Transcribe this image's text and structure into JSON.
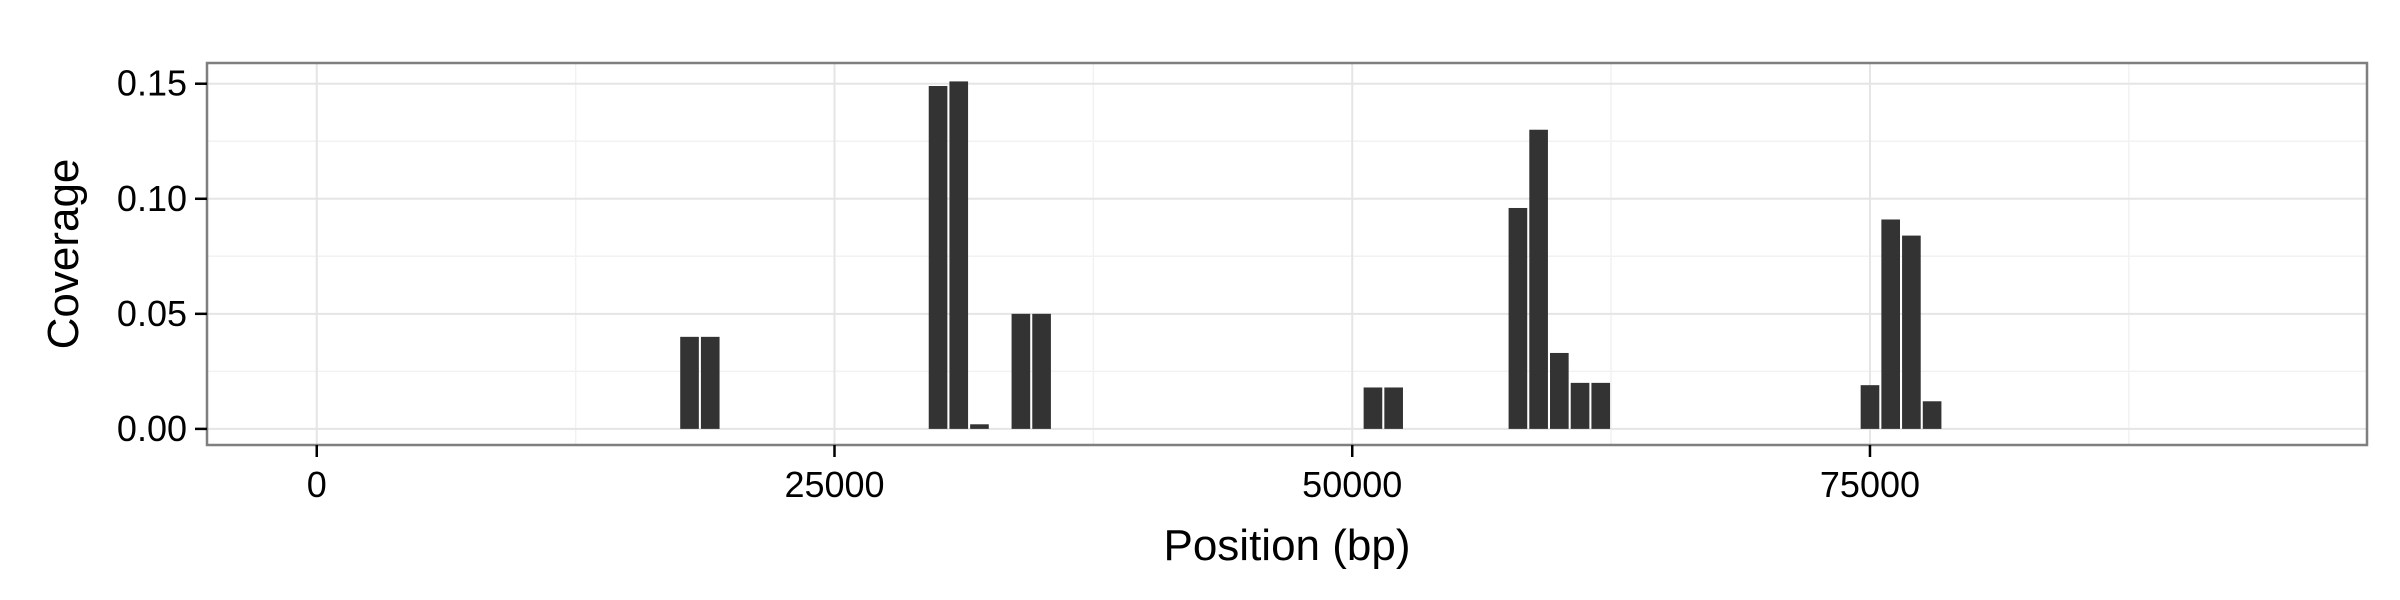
{
  "chart_data": {
    "type": "bar",
    "title": "",
    "xlabel": "Position (bp)",
    "ylabel": "Coverage",
    "xlim": [
      -5300,
      99000
    ],
    "ylim": [
      -0.007,
      0.159
    ],
    "x_ticks": [
      0,
      25000,
      50000,
      75000
    ],
    "x_tick_labels": [
      "0",
      "25000",
      "50000",
      "75000"
    ],
    "y_ticks": [
      0,
      0.05,
      0.1,
      0.15
    ],
    "y_tick_labels": [
      "0.00",
      "0.05",
      "0.10",
      "0.15"
    ],
    "grid": true,
    "bin_width": 1000,
    "bar_color": "#333333",
    "x": [
      18000,
      19000,
      30000,
      31000,
      32000,
      34000,
      35000,
      51000,
      52000,
      58000,
      59000,
      60000,
      61000,
      62000,
      75000,
      76000,
      77000,
      78000
    ],
    "values": [
      0.04,
      0.04,
      0.149,
      0.151,
      0.002,
      0.05,
      0.05,
      0.018,
      0.018,
      0.096,
      0.13,
      0.033,
      0.02,
      0.02,
      0.019,
      0.091,
      0.084,
      0.012
    ]
  }
}
